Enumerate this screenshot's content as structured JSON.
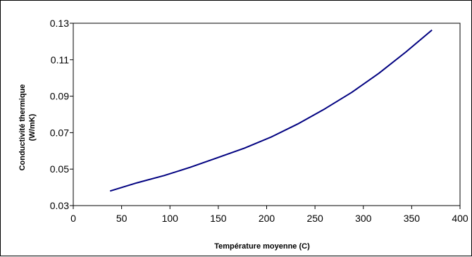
{
  "chart_data": {
    "type": "line",
    "title": "",
    "xlabel": "Température moyenne (C)",
    "ylabel": [
      "Conductivité thermique",
      "(W/mK)"
    ],
    "xlim": [
      0,
      400
    ],
    "ylim": [
      0.03,
      0.13
    ],
    "x_ticks": [
      "0",
      "50",
      "100",
      "150",
      "200",
      "250",
      "300",
      "350",
      "400"
    ],
    "y_ticks": [
      "0.03",
      "0.05",
      "0.07",
      "0.09",
      "0.11",
      "0.13"
    ],
    "grid": false,
    "legend": "none",
    "series": [
      {
        "color": "#000080",
        "x": [
          38,
          66,
          94,
          121,
          149,
          177,
          205,
          232,
          260,
          288,
          316,
          344,
          371
        ],
        "y": [
          0.038,
          0.0425,
          0.0465,
          0.051,
          0.0562,
          0.0615,
          0.0677,
          0.0747,
          0.083,
          0.0921,
          0.1025,
          0.1142,
          0.1263
        ]
      }
    ]
  }
}
